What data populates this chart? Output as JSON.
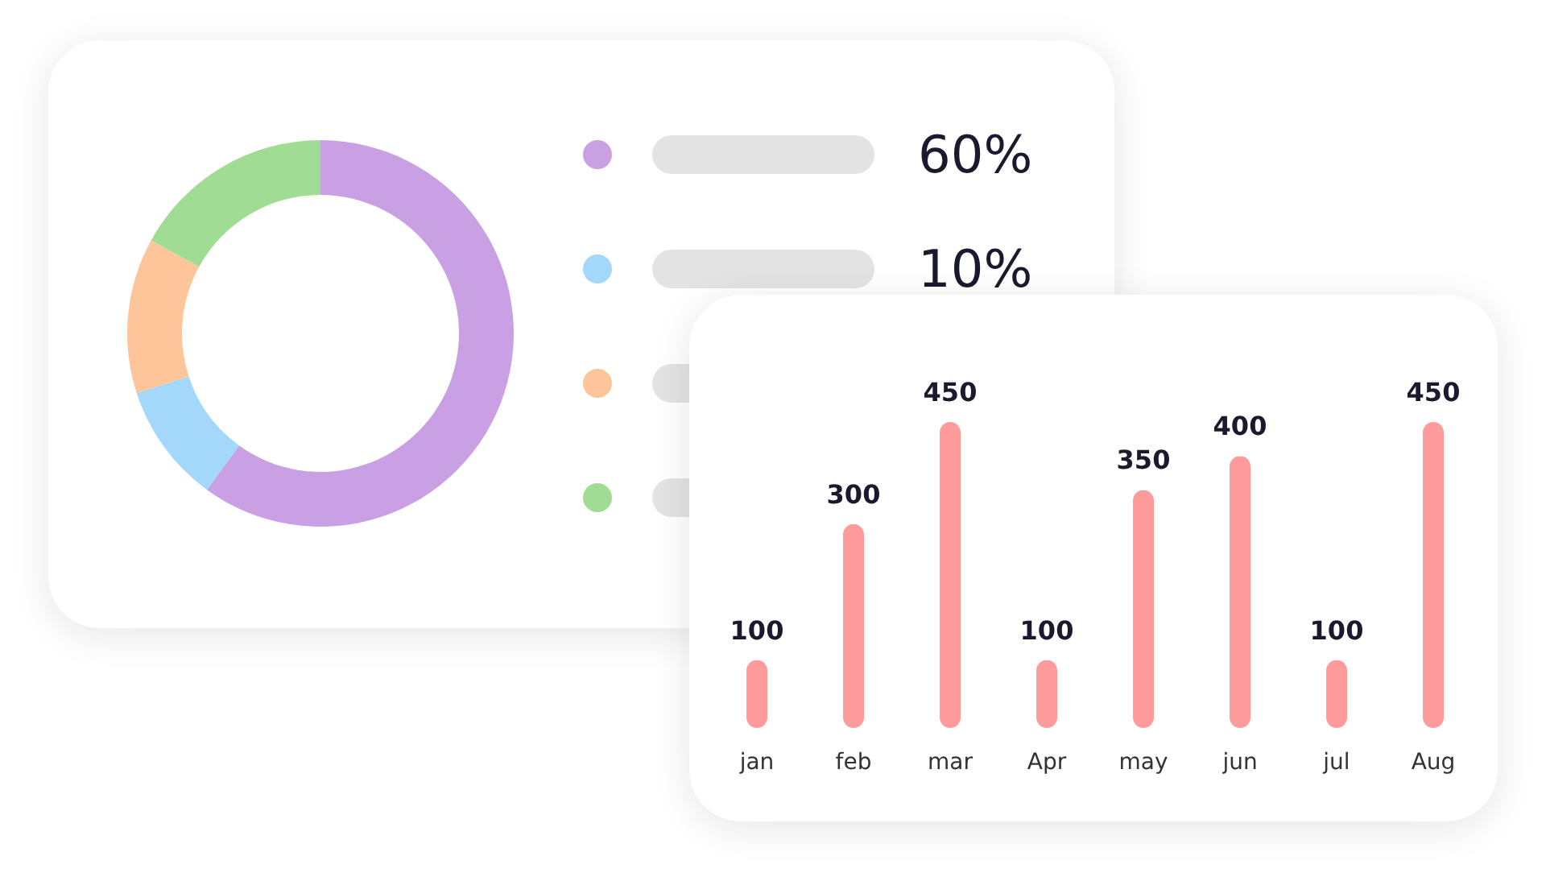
{
  "chart_data": [
    {
      "type": "donut",
      "categories": [
        null,
        null,
        null,
        null
      ],
      "values": [
        60,
        10,
        13,
        17
      ],
      "colors": [
        "#c9a0e4",
        "#a3d8fb",
        "#fec59a",
        "#a1dc94"
      ],
      "annotations": [
        "60%",
        "10%"
      ]
    },
    {
      "type": "bar",
      "categories": [
        "jan",
        "feb",
        "mar",
        "Apr",
        "may",
        "jun",
        "jul",
        "Aug"
      ],
      "values": [
        100,
        300,
        450,
        100,
        350,
        400,
        100,
        450
      ],
      "color": "#ff9b9b",
      "data_labels": true
    }
  ]
}
